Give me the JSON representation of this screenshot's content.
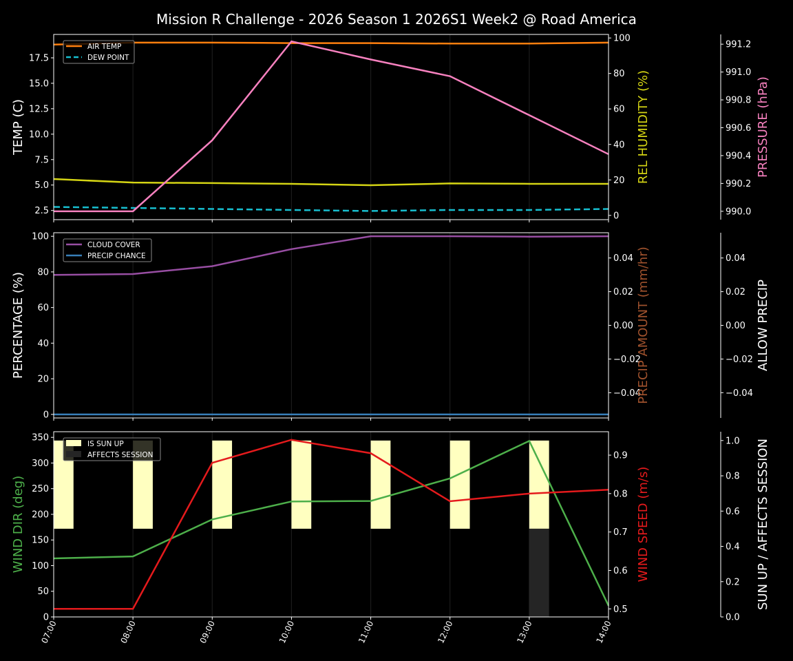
{
  "title": "Mission R Challenge - 2026 Season 1 2026S1 Week2 @ Road America",
  "chart_data": [
    {
      "type": "line",
      "panel": "top",
      "x": [
        "07:00",
        "08:00",
        "09:00",
        "10:00",
        "11:00",
        "12:00",
        "13:00",
        "14:00"
      ],
      "legend": {
        "position": "upper left",
        "entries": [
          "AIR TEMP",
          "DEW POINT"
        ]
      },
      "axes": {
        "left": {
          "label": "TEMP (C)",
          "ticks": [
            2.5,
            5.0,
            7.5,
            10.0,
            12.5,
            15.0,
            17.5
          ],
          "ylim": [
            1.6,
            19.8
          ],
          "color": "#ffffff"
        },
        "right1": {
          "label": "REL HUMIDITY (%)",
          "ticks": [
            0,
            20,
            40,
            60,
            80,
            100
          ],
          "ylim": [
            -2.4,
            102
          ],
          "color": "#d4d414"
        },
        "right2": {
          "label": "PRESSURE (hPa)",
          "ticks": [
            990.0,
            990.2,
            990.4,
            990.6,
            990.8,
            991.0,
            991.2
          ],
          "ylim": [
            989.94,
            991.27
          ],
          "color": "#f781bf"
        }
      },
      "series": [
        {
          "name": "AIR TEMP",
          "axis": "left",
          "color": "#ff7f0e",
          "dash": false,
          "values": [
            18.8,
            19.0,
            19.0,
            18.95,
            18.95,
            18.9,
            18.9,
            19.0
          ]
        },
        {
          "name": "DEW POINT",
          "axis": "left",
          "color": "#17becf",
          "dash": true,
          "values": [
            2.85,
            2.75,
            2.65,
            2.55,
            2.45,
            2.55,
            2.55,
            2.65
          ]
        },
        {
          "name": "REL HUMIDITY",
          "axis": "right1",
          "color": "#d4d414",
          "dash": false,
          "values": [
            20.5,
            18.5,
            18.2,
            17.8,
            17.0,
            18.0,
            17.8,
            17.8
          ]
        },
        {
          "name": "PRESSURE",
          "axis": "right2",
          "color": "#f781bf",
          "dash": false,
          "values": [
            990.0,
            990.0,
            990.51,
            991.22,
            991.09,
            990.97,
            990.69,
            990.41
          ]
        }
      ]
    },
    {
      "type": "line",
      "panel": "middle",
      "x": [
        "07:00",
        "08:00",
        "09:00",
        "10:00",
        "11:00",
        "12:00",
        "13:00",
        "14:00"
      ],
      "legend": {
        "position": "upper left",
        "entries": [
          "CLOUD COVER",
          "PRECIP CHANCE"
        ]
      },
      "axes": {
        "left": {
          "label": "PERCENTAGE (%)",
          "ticks": [
            0,
            20,
            40,
            60,
            80,
            100
          ],
          "ylim": [
            -2,
            102
          ],
          "color": "#ffffff"
        },
        "right1": {
          "label": "PRECIP AMOUNT (mm/hr)",
          "ticks": [
            -0.04,
            -0.02,
            0.0,
            0.02,
            0.04
          ],
          "ylim": [
            -0.055,
            0.055
          ],
          "color": "#a0522d"
        },
        "right2": {
          "label": "ALLOW PRECIP",
          "ticks": [
            -0.04,
            -0.02,
            0.0,
            0.02,
            0.04
          ],
          "ylim": [
            -0.055,
            0.055
          ],
          "color": "#ffffff"
        }
      },
      "series": [
        {
          "name": "CLOUD COVER",
          "axis": "left",
          "color": "#984ea3",
          "values": [
            78.3,
            78.8,
            83.2,
            92.8,
            100,
            100,
            99.8,
            100
          ]
        },
        {
          "name": "PRECIP CHANCE",
          "axis": "left",
          "color": "#377eb8",
          "values": [
            0,
            0,
            0,
            0,
            0,
            0,
            0,
            0
          ]
        }
      ]
    },
    {
      "type": "line",
      "panel": "bottom",
      "x": [
        "07:00",
        "08:00",
        "09:00",
        "10:00",
        "11:00",
        "12:00",
        "13:00",
        "14:00"
      ],
      "legend": {
        "position": "upper left",
        "entries": [
          "IS SUN UP",
          "AFFECTS SESSION"
        ]
      },
      "axes": {
        "left": {
          "label": "WIND DIR (deg)",
          "ticks": [
            0,
            50,
            100,
            150,
            200,
            250,
            300,
            350
          ],
          "ylim": [
            0,
            361
          ],
          "color": "#4daf4a"
        },
        "right1": {
          "label": "WIND SPEED (m/s)",
          "ticks": [
            0.5,
            0.6,
            0.7,
            0.8,
            0.9
          ],
          "ylim": [
            0.479,
            0.961
          ],
          "color": "#e41a1c"
        },
        "right2": {
          "label": "SUN UP / AFFECTS SESSION",
          "ticks": [
            0.0,
            0.2,
            0.4,
            0.6,
            0.8,
            1.0
          ],
          "ylim": [
            0,
            1.05
          ],
          "color": "#ffffff"
        }
      },
      "series": [
        {
          "name": "WIND DIR",
          "axis": "left",
          "color": "#4daf4a",
          "values": [
            114,
            118,
            190,
            225,
            226,
            270,
            343,
            22
          ]
        },
        {
          "name": "WIND SPEED",
          "axis": "right1",
          "color": "#e41a1c",
          "values": [
            0.5,
            0.5,
            0.88,
            0.94,
            0.905,
            0.78,
            0.8,
            0.81
          ]
        }
      ],
      "bars": [
        {
          "name": "IS SUN UP",
          "color": "#ffffc0",
          "values": [
            1,
            1,
            1,
            1,
            1,
            1,
            1,
            0
          ],
          "bottom": 0.5
        },
        {
          "name": "AFFECTS SESSION",
          "color": "#252525",
          "values": [
            0,
            0,
            0,
            0,
            0,
            0,
            1,
            0
          ]
        }
      ]
    }
  ]
}
